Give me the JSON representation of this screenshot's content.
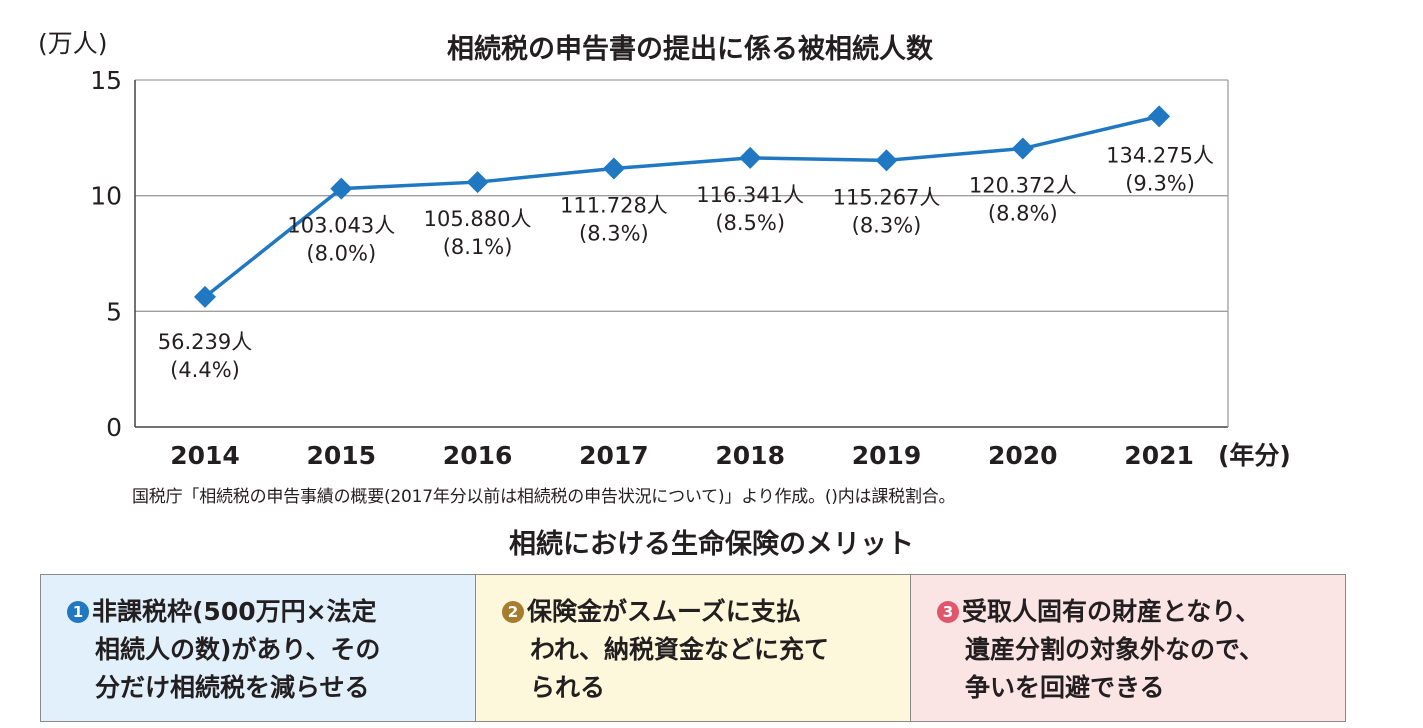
{
  "chart_data": {
    "type": "line",
    "title": "相続税の申告書の提出に係る被相続人数",
    "ylabel": "(万人)",
    "xlabel": "(年分)",
    "ylim": [
      0,
      15
    ],
    "yticks": [
      "0",
      "5",
      "10",
      "15"
    ],
    "grid": true,
    "categories": [
      "2014",
      "2015",
      "2016",
      "2017",
      "2018",
      "2019",
      "2020",
      "2021"
    ],
    "series": [
      {
        "values": [
          5.6239,
          10.3043,
          10.588,
          11.1728,
          11.6341,
          11.5267,
          12.0372,
          13.4275
        ]
      }
    ],
    "data_labels": [
      {
        "value": "56.239人",
        "pct": "(4.4%)"
      },
      {
        "value": "103.043人",
        "pct": "(8.0%)"
      },
      {
        "value": "105.880人",
        "pct": "(8.1%)"
      },
      {
        "value": "111.728人",
        "pct": "(8.3%)"
      },
      {
        "value": "116.341人",
        "pct": "(8.5%)"
      },
      {
        "value": "115.267人",
        "pct": "(8.3%)"
      },
      {
        "value": "120.372人",
        "pct": "(8.8%)"
      },
      {
        "value": "134.275人",
        "pct": "(9.3%)"
      }
    ],
    "colors": {
      "line": "#1f78c1",
      "grid": "#9e9e9e"
    }
  },
  "source_note": "国税庁「相続税の申告事績の概要(2017年分以前は相続税の申告状況について)」より作成。()内は課税割合。",
  "section_title": "相続における生命保険のメリット",
  "merits": [
    {
      "number": "1",
      "color": "#1f78c1",
      "background": "#e1f0fb",
      "lines": [
        "非課税枠(500万円×法定",
        "相続人の数)があり、その",
        "分だけ相続税を減らせる"
      ]
    },
    {
      "number": "2",
      "color": "#a67c2e",
      "background": "#fdf8dc",
      "lines": [
        "保険金がスムーズに支払",
        "われ、納税資金などに充て",
        "られる"
      ]
    },
    {
      "number": "3",
      "color": "#e0566b",
      "background": "#fbe5e4",
      "lines": [
        "受取人固有の財産となり、",
        "遺産分割の対象外なので、",
        "争いを回避できる"
      ]
    }
  ]
}
